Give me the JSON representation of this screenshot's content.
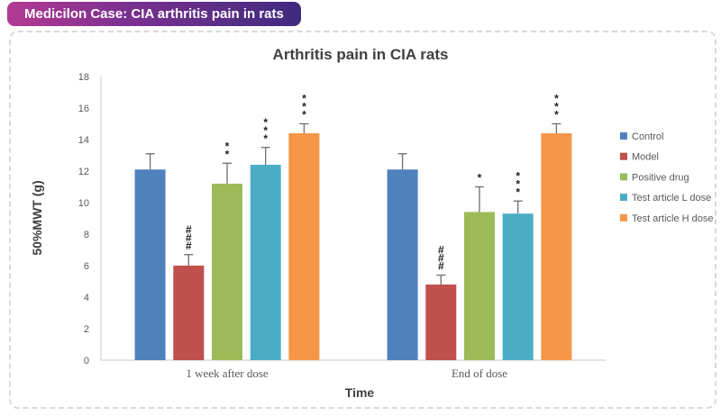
{
  "banner": {
    "text": "Medicilon Case: CIA arthritis pain in rats",
    "gradient_left": "#b23a92",
    "gradient_right": "#3f2a7e"
  },
  "chart_data": {
    "type": "bar",
    "title": "Arthritis pain in CIA rats",
    "xlabel": "Time",
    "ylabel": "50%MWT (g)",
    "ylim": [
      0,
      18
    ],
    "ytick_step": 2,
    "grid": "off",
    "legend_position": "right",
    "categories": [
      "1 week after dose",
      "End of dose"
    ],
    "series": [
      {
        "name": "Control",
        "color": "#4F81BD",
        "values": [
          12.1,
          12.1
        ],
        "errors": [
          1.0,
          1.0
        ],
        "sig": [
          "",
          ""
        ]
      },
      {
        "name": "Model",
        "color": "#C0504D",
        "values": [
          6.0,
          4.8
        ],
        "errors": [
          0.7,
          0.6
        ],
        "sig": [
          "###",
          "###"
        ]
      },
      {
        "name": "Positive drug",
        "color": "#9BBB59",
        "values": [
          11.2,
          9.4
        ],
        "errors": [
          1.3,
          1.6
        ],
        "sig": [
          "**",
          "*"
        ]
      },
      {
        "name": "Test article L dose",
        "color": "#4BACC6",
        "values": [
          12.4,
          9.3
        ],
        "errors": [
          1.1,
          0.8
        ],
        "sig": [
          "***",
          "***"
        ]
      },
      {
        "name": "Test article H dose",
        "color": "#F79646",
        "values": [
          14.4,
          14.4
        ],
        "errors": [
          0.6,
          0.6
        ],
        "sig": [
          "***",
          "***"
        ]
      }
    ],
    "axis_color": "#c9c9c9",
    "error_bar_color": "#6e6e6e",
    "tick_label_color": "#595959",
    "title_color": "#3f3f3f"
  }
}
